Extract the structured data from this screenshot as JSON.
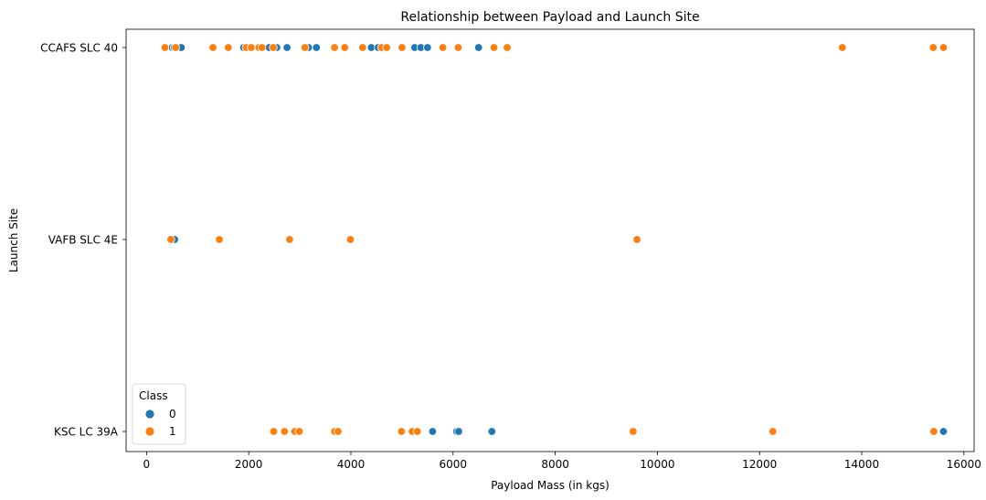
{
  "chart_data": {
    "type": "scatter",
    "title": "Relationship between Payload and Launch Site",
    "xlabel": "Payload Mass (in kgs)",
    "ylabel": "Launch Site",
    "xlim": [
      -400,
      16200
    ],
    "x_ticks": [
      0,
      2000,
      4000,
      6000,
      8000,
      10000,
      12000,
      14000,
      16000
    ],
    "categories": [
      "CCAFS SLC 40",
      "VAFB SLC 4E",
      "KSC LC 39A"
    ],
    "legend": {
      "title": "Class",
      "placement": "lower-left",
      "entries": [
        "0",
        "1"
      ]
    },
    "colors": {
      "0": "#1f77b4",
      "1": "#ff7f0e"
    },
    "series": [
      {
        "name": "0",
        "points": [
          {
            "x": 500,
            "y": "CCAFS SLC 40"
          },
          {
            "x": 540,
            "y": "CCAFS SLC 40"
          },
          {
            "x": 680,
            "y": "CCAFS SLC 40"
          },
          {
            "x": 1900,
            "y": "CCAFS SLC 40"
          },
          {
            "x": 2400,
            "y": "CCAFS SLC 40"
          },
          {
            "x": 2550,
            "y": "CCAFS SLC 40"
          },
          {
            "x": 2750,
            "y": "CCAFS SLC 40"
          },
          {
            "x": 3170,
            "y": "CCAFS SLC 40"
          },
          {
            "x": 3325,
            "y": "CCAFS SLC 40"
          },
          {
            "x": 4400,
            "y": "CCAFS SLC 40"
          },
          {
            "x": 4535,
            "y": "CCAFS SLC 40"
          },
          {
            "x": 5250,
            "y": "CCAFS SLC 40"
          },
          {
            "x": 5370,
            "y": "CCAFS SLC 40"
          },
          {
            "x": 5500,
            "y": "CCAFS SLC 40"
          },
          {
            "x": 6500,
            "y": "CCAFS SLC 40"
          },
          {
            "x": 550,
            "y": "VAFB SLC 4E"
          },
          {
            "x": 5600,
            "y": "KSC LC 39A"
          },
          {
            "x": 6070,
            "y": "KSC LC 39A"
          },
          {
            "x": 6110,
            "y": "KSC LC 39A"
          },
          {
            "x": 6760,
            "y": "KSC LC 39A"
          },
          {
            "x": 15600,
            "y": "KSC LC 39A"
          }
        ]
      },
      {
        "name": "1",
        "points": [
          {
            "x": 360,
            "y": "CCAFS SLC 40"
          },
          {
            "x": 570,
            "y": "CCAFS SLC 40"
          },
          {
            "x": 1300,
            "y": "CCAFS SLC 40"
          },
          {
            "x": 1600,
            "y": "CCAFS SLC 40"
          },
          {
            "x": 1950,
            "y": "CCAFS SLC 40"
          },
          {
            "x": 2050,
            "y": "CCAFS SLC 40"
          },
          {
            "x": 2200,
            "y": "CCAFS SLC 40"
          },
          {
            "x": 2260,
            "y": "CCAFS SLC 40"
          },
          {
            "x": 2480,
            "y": "CCAFS SLC 40"
          },
          {
            "x": 3100,
            "y": "CCAFS SLC 40"
          },
          {
            "x": 3680,
            "y": "CCAFS SLC 40"
          },
          {
            "x": 3880,
            "y": "CCAFS SLC 40"
          },
          {
            "x": 4230,
            "y": "CCAFS SLC 40"
          },
          {
            "x": 4600,
            "y": "CCAFS SLC 40"
          },
          {
            "x": 4700,
            "y": "CCAFS SLC 40"
          },
          {
            "x": 5000,
            "y": "CCAFS SLC 40"
          },
          {
            "x": 5800,
            "y": "CCAFS SLC 40"
          },
          {
            "x": 6100,
            "y": "CCAFS SLC 40"
          },
          {
            "x": 6800,
            "y": "CCAFS SLC 40"
          },
          {
            "x": 7060,
            "y": "CCAFS SLC 40"
          },
          {
            "x": 13620,
            "y": "CCAFS SLC 40"
          },
          {
            "x": 15400,
            "y": "CCAFS SLC 40"
          },
          {
            "x": 15600,
            "y": "CCAFS SLC 40"
          },
          {
            "x": 475,
            "y": "VAFB SLC 4E"
          },
          {
            "x": 1425,
            "y": "VAFB SLC 4E"
          },
          {
            "x": 2800,
            "y": "VAFB SLC 4E"
          },
          {
            "x": 3990,
            "y": "VAFB SLC 4E"
          },
          {
            "x": 9600,
            "y": "VAFB SLC 4E"
          },
          {
            "x": 2490,
            "y": "KSC LC 39A"
          },
          {
            "x": 2700,
            "y": "KSC LC 39A"
          },
          {
            "x": 2900,
            "y": "KSC LC 39A"
          },
          {
            "x": 2990,
            "y": "KSC LC 39A"
          },
          {
            "x": 3680,
            "y": "KSC LC 39A"
          },
          {
            "x": 3750,
            "y": "KSC LC 39A"
          },
          {
            "x": 4990,
            "y": "KSC LC 39A"
          },
          {
            "x": 5200,
            "y": "KSC LC 39A"
          },
          {
            "x": 5300,
            "y": "KSC LC 39A"
          },
          {
            "x": 9525,
            "y": "KSC LC 39A"
          },
          {
            "x": 12260,
            "y": "KSC LC 39A"
          },
          {
            "x": 15410,
            "y": "KSC LC 39A"
          }
        ]
      }
    ]
  }
}
